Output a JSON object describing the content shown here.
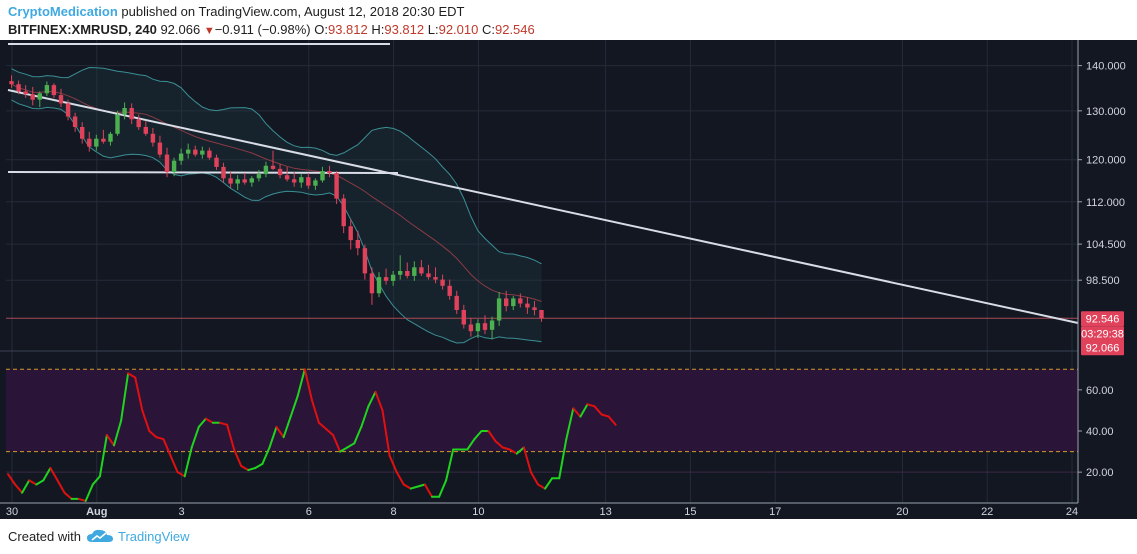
{
  "header": {
    "author": "CryptoMedication",
    "published_text": " published on TradingView.com, August 12, 2018 20:30 EDT",
    "symbol": "BITFINEX:XMRUSD, 240",
    "last": "92.066",
    "change": "−0.911 (−0.98%)",
    "o_label": "O:",
    "o_value": "93.812",
    "h_label": "H:",
    "h_value": "93.812",
    "l_label": "L:",
    "l_value": "92.010",
    "c_label": "C:",
    "c_value": "92.546"
  },
  "footer": {
    "created_with": "Created with",
    "brand": "TradingView"
  },
  "chart_data": [
    {
      "type": "candlestick",
      "symbol": "BITFINEX:XMRUSD",
      "interval": "240",
      "x_ticks": [
        "30",
        "Aug",
        "3",
        "6",
        "8",
        "10",
        "13",
        "15",
        "17",
        "20",
        "22",
        "24"
      ],
      "y_ticks": [
        "140.000",
        "130.000",
        "120.000",
        "112.000",
        "104.500",
        "98.500"
      ],
      "y_scale": "log",
      "ylim": [
        88,
        146
      ],
      "price_labels": {
        "close": "92.546",
        "countdown": "03:29:38",
        "last": "92.066"
      },
      "colors": {
        "up": "#4caf50",
        "down": "#e0425b",
        "background": "#131722",
        "bands": "#3a8f95",
        "trendline": "#d8dce6"
      },
      "ohlc": [
        [
          136.5,
          137.8,
          135.0,
          135.8
        ],
        [
          135.8,
          136.6,
          133.6,
          134.2
        ],
        [
          134.2,
          135.6,
          132.8,
          133.6
        ],
        [
          133.6,
          135.2,
          131.2,
          132.4
        ],
        [
          132.4,
          134.2,
          130.8,
          133.8
        ],
        [
          133.8,
          136.4,
          133.2,
          135.6
        ],
        [
          135.6,
          136.0,
          132.8,
          133.4
        ],
        [
          133.4,
          134.8,
          130.8,
          131.6
        ],
        [
          131.6,
          132.4,
          128.0,
          128.8
        ],
        [
          128.8,
          129.6,
          125.6,
          126.6
        ],
        [
          126.6,
          127.6,
          123.2,
          124.2
        ],
        [
          124.2,
          125.6,
          121.6,
          122.6
        ],
        [
          122.6,
          125.0,
          121.8,
          124.2
        ],
        [
          124.2,
          126.0,
          123.2,
          123.6
        ],
        [
          123.6,
          125.6,
          122.8,
          125.2
        ],
        [
          125.2,
          130.0,
          124.8,
          129.2
        ],
        [
          129.2,
          131.8,
          128.2,
          130.6
        ],
        [
          130.6,
          131.6,
          127.2,
          128.2
        ],
        [
          128.2,
          129.2,
          126.0,
          126.6
        ],
        [
          126.6,
          127.8,
          124.8,
          125.2
        ],
        [
          125.2,
          126.4,
          122.6,
          123.4
        ],
        [
          123.4,
          124.8,
          120.4,
          121.0
        ],
        [
          121.0,
          122.4,
          116.6,
          117.6
        ],
        [
          117.6,
          120.4,
          116.8,
          119.8
        ],
        [
          119.8,
          122.2,
          119.0,
          121.2
        ],
        [
          121.2,
          123.2,
          120.2,
          122.0
        ],
        [
          122.0,
          122.8,
          120.6,
          121.0
        ],
        [
          121.0,
          122.6,
          120.2,
          121.8
        ],
        [
          121.8,
          122.4,
          120.0,
          120.4
        ],
        [
          120.4,
          121.0,
          118.0,
          118.6
        ],
        [
          118.6,
          119.4,
          115.6,
          116.4
        ],
        [
          116.4,
          117.8,
          114.6,
          115.4
        ],
        [
          115.4,
          117.0,
          114.2,
          116.2
        ],
        [
          116.2,
          117.4,
          115.2,
          115.6
        ],
        [
          115.6,
          116.8,
          114.8,
          116.4
        ],
        [
          116.4,
          118.0,
          115.8,
          117.2
        ],
        [
          117.2,
          119.6,
          116.6,
          118.8
        ],
        [
          118.8,
          121.8,
          118.0,
          118.2
        ],
        [
          118.2,
          119.2,
          116.4,
          117.0
        ],
        [
          117.0,
          118.6,
          115.8,
          116.2
        ],
        [
          116.2,
          117.6,
          114.8,
          115.6
        ],
        [
          115.6,
          117.2,
          114.6,
          116.6
        ],
        [
          116.6,
          117.4,
          114.4,
          115.0
        ],
        [
          115.0,
          116.4,
          114.2,
          116.0
        ],
        [
          116.0,
          118.6,
          115.6,
          117.8
        ],
        [
          117.8,
          118.8,
          116.6,
          117.4
        ],
        [
          117.4,
          117.8,
          111.6,
          112.6
        ],
        [
          112.6,
          113.4,
          106.4,
          107.6
        ],
        [
          107.6,
          108.8,
          103.6,
          105.2
        ],
        [
          105.2,
          106.8,
          102.6,
          103.8
        ],
        [
          103.8,
          104.4,
          98.6,
          99.6
        ],
        [
          99.6,
          100.6,
          94.6,
          96.4
        ],
        [
          96.4,
          99.8,
          95.8,
          99.0
        ],
        [
          99.0,
          100.4,
          97.8,
          98.4
        ],
        [
          98.4,
          100.0,
          97.6,
          99.4
        ],
        [
          99.4,
          102.6,
          98.6,
          100.0
        ],
        [
          100.0,
          101.4,
          98.8,
          99.2
        ],
        [
          99.2,
          101.6,
          98.4,
          100.6
        ],
        [
          100.6,
          101.8,
          99.2,
          99.6
        ],
        [
          99.6,
          101.0,
          98.6,
          99.0
        ],
        [
          99.0,
          100.6,
          98.0,
          98.6
        ],
        [
          98.6,
          99.4,
          97.0,
          97.6
        ],
        [
          97.6,
          98.6,
          95.4,
          96.0
        ],
        [
          96.0,
          96.8,
          93.2,
          93.8
        ],
        [
          93.8,
          94.6,
          91.0,
          91.6
        ],
        [
          91.6,
          92.6,
          89.8,
          90.6
        ],
        [
          90.6,
          92.4,
          89.6,
          91.8
        ],
        [
          91.8,
          93.0,
          90.2,
          90.8
        ],
        [
          90.8,
          92.8,
          89.4,
          92.2
        ],
        [
          92.2,
          96.6,
          91.4,
          95.6
        ],
        [
          95.6,
          96.8,
          93.6,
          94.4
        ],
        [
          94.4,
          96.0,
          93.8,
          95.6
        ],
        [
          95.6,
          96.4,
          94.2,
          94.8
        ],
        [
          94.8,
          95.8,
          93.2,
          94.2
        ],
        [
          94.2,
          95.2,
          93.0,
          93.8
        ],
        [
          93.812,
          93.812,
          92.01,
          92.546
        ]
      ]
    },
    {
      "type": "line",
      "name": "oscillator",
      "y_ticks": [
        "60.00",
        "40.00",
        "20.00"
      ],
      "ylim": [
        5,
        75
      ],
      "upper_level": 70,
      "lower_level": 30,
      "up_color": "#1fd41f",
      "down_color": "#e01010",
      "values": [
        19,
        14,
        10,
        16,
        14,
        16,
        22,
        16,
        10,
        7,
        7,
        6,
        14,
        18,
        38,
        33,
        45,
        68,
        66,
        50,
        40,
        37,
        36,
        28,
        20,
        18,
        32,
        42,
        46,
        44,
        44,
        43,
        31,
        23,
        21,
        22,
        24,
        32,
        42,
        37,
        47,
        57,
        70,
        55,
        44,
        41,
        38,
        30,
        32,
        34,
        42,
        52,
        59,
        50,
        28,
        20,
        14,
        12,
        13,
        14,
        8,
        8,
        16,
        31,
        31,
        31,
        36,
        40,
        40,
        35,
        32,
        31,
        29,
        32,
        20,
        14,
        12,
        17,
        17,
        36,
        51,
        47,
        53,
        52,
        48,
        47,
        43
      ]
    }
  ]
}
